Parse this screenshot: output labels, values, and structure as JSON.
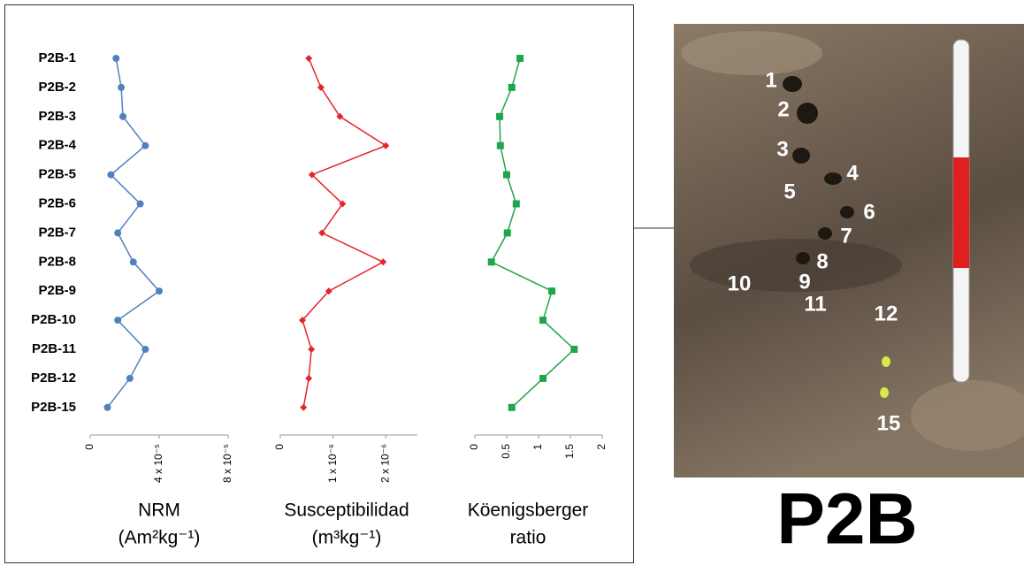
{
  "chart_data": [
    {
      "type": "line",
      "orientation": "horizontal",
      "marker": "circle",
      "color": "#4f81bd",
      "categories": [
        "P2B-1",
        "P2B-2",
        "P2B-3",
        "P2B-4",
        "P2B-5",
        "P2B-6",
        "P2B-7",
        "P2B-8",
        "P2B-9",
        "P2B-10",
        "P2B-11",
        "P2B-12",
        "P2B-15"
      ],
      "values": [
        1.5e-05,
        1.8e-05,
        1.9e-05,
        3.2e-05,
        1.2e-05,
        2.9e-05,
        1.6e-05,
        2.5e-05,
        4e-05,
        1.6e-05,
        3.2e-05,
        2.3e-05,
        1e-05
      ],
      "xlim": [
        0,
        8e-05
      ],
      "xticks": [
        0,
        {
          "value": 4e-05,
          "label": "4 x 10⁻⁵"
        },
        {
          "value": 8e-05,
          "label": "8 x 10⁻⁵"
        }
      ],
      "xlabel": [
        "NRM",
        "(Am²kg⁻¹)"
      ]
    },
    {
      "type": "line",
      "orientation": "horizontal",
      "marker": "diamond",
      "color": "#e3262b",
      "values": [
        5.4e-07,
        7.7e-07,
        1.13e-06,
        2e-06,
        6e-07,
        1.18e-06,
        7.9e-07,
        1.95e-06,
        9.2e-07,
        4.2e-07,
        5.9e-07,
        5.4e-07,
        4.4e-07
      ],
      "xlim": [
        0,
        2.6e-06
      ],
      "xticks": [
        0,
        {
          "value": 1e-06,
          "label": "1 x 10⁻⁶"
        },
        {
          "value": 2e-06,
          "label": "2 x 10⁻⁶"
        }
      ],
      "xlabel": [
        "Susceptibilidad",
        "(m³kg⁻¹)"
      ]
    },
    {
      "type": "line",
      "orientation": "horizontal",
      "marker": "square",
      "color": "#1fa64a",
      "values": [
        0.71,
        0.58,
        0.39,
        0.4,
        0.5,
        0.65,
        0.51,
        0.26,
        1.21,
        1.07,
        1.56,
        1.07,
        0.58
      ],
      "xlim": [
        0,
        2
      ],
      "xticks": [
        0,
        0.5,
        1,
        1.5,
        2
      ],
      "xlabel": [
        "Köenigsberger",
        "ratio"
      ]
    }
  ],
  "photo": {
    "title": "P2B",
    "labels": [
      "1",
      "2",
      "3",
      "4",
      "5",
      "6",
      "7",
      "8",
      "9",
      "10",
      "11",
      "12",
      "15"
    ]
  }
}
